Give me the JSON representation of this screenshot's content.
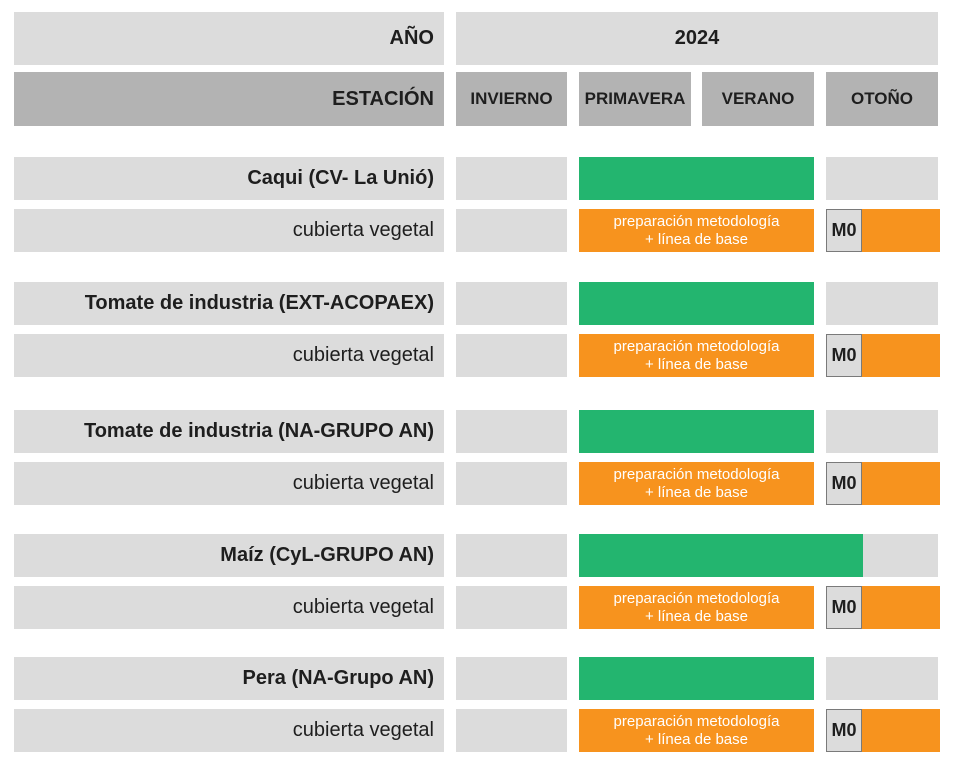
{
  "header": {
    "year_label": "AÑO",
    "year_value": "2024",
    "season_label": "ESTACIÓN",
    "seasons": [
      "INVIERNO",
      "PRIMAVERA",
      "VERANO",
      "OTOÑO"
    ]
  },
  "colors": {
    "green": "#23b56f",
    "orange": "#f7931e",
    "light_gray": "#dcdcdc",
    "dark_gray": "#b3b3b3"
  },
  "rows": [
    {
      "crop": "Caqui (CV- La Unió)",
      "sub": "cubierta vegetal",
      "prep_line1": "preparación metodología",
      "prep_line2": "+ línea de base",
      "milestone": "M0"
    },
    {
      "crop": "Tomate de industria (EXT-ACOPAEX)",
      "sub": "cubierta vegetal",
      "prep_line1": "preparación metodología",
      "prep_line2": "+ línea de base",
      "milestone": "M0"
    },
    {
      "crop": "Tomate de industria (NA-GRUPO AN)",
      "sub": "cubierta vegetal",
      "prep_line1": "preparación metodología",
      "prep_line2": "+ línea de base",
      "milestone": "M0"
    },
    {
      "crop": "Maíz (CyL-GRUPO AN)",
      "sub": "cubierta vegetal",
      "prep_line1": "preparación metodología",
      "prep_line2": "+ línea de base",
      "milestone": "M0"
    },
    {
      "crop": "Pera (NA-Grupo AN)",
      "sub": "cubierta vegetal",
      "prep_line1": "preparación metodología",
      "prep_line2": "+ línea de base",
      "milestone": "M0"
    }
  ]
}
